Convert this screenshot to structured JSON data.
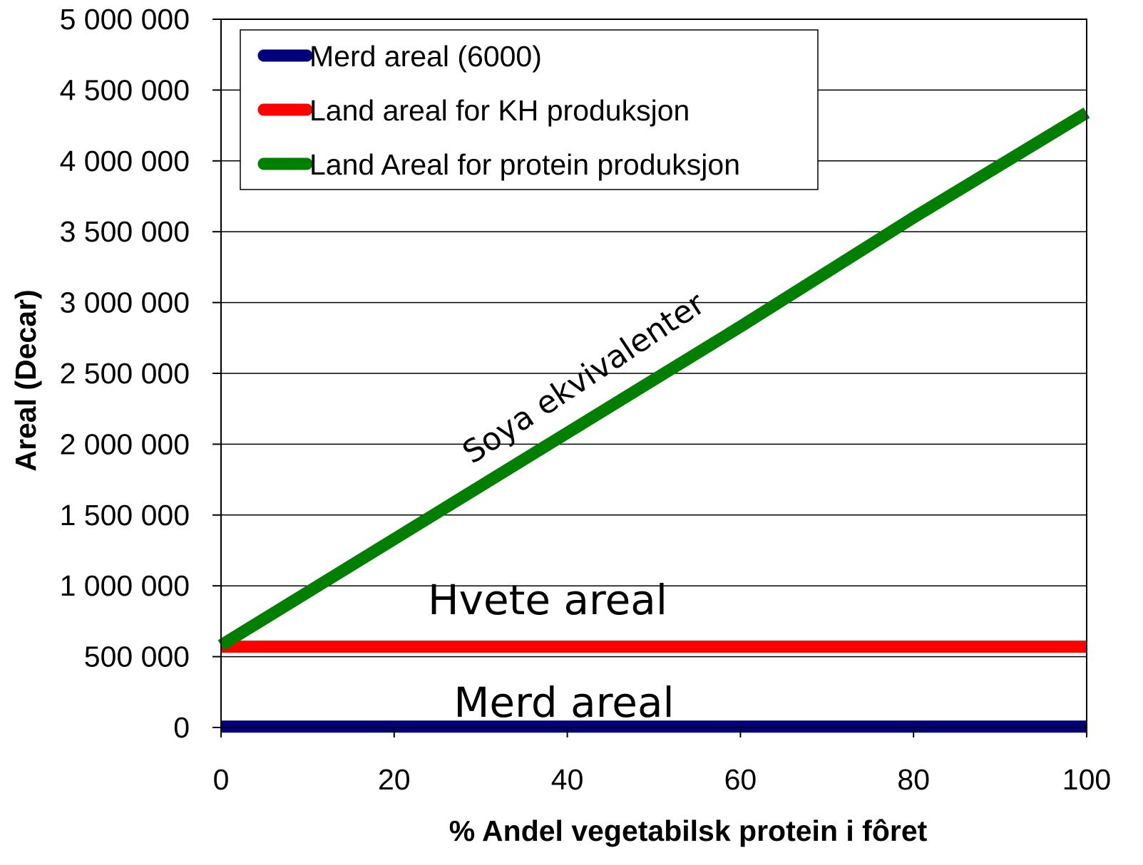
{
  "chart_data": {
    "type": "line",
    "title": "",
    "xlabel": "% Andel vegetabilsk protein i fôret",
    "ylabel": "Areal (Decar)",
    "xlim": [
      0,
      100
    ],
    "ylim": [
      0,
      5000000
    ],
    "x_ticks": [
      0,
      20,
      40,
      60,
      80,
      100
    ],
    "x_tick_labels": [
      "0",
      "20",
      "40",
      "60",
      "80",
      "100"
    ],
    "y_ticks": [
      0,
      500000,
      1000000,
      1500000,
      2000000,
      2500000,
      3000000,
      3500000,
      4000000,
      4500000,
      5000000
    ],
    "y_tick_labels": [
      "0",
      "500 000",
      "1 000 000",
      "1 500 000",
      "2 000 000",
      "2 500 000",
      "3 000 000",
      "3 500 000",
      "4 000 000",
      "4 500 000",
      "5 000 000"
    ],
    "grid": true,
    "legend_position": "top-left",
    "x": [
      0,
      20,
      40,
      60,
      80,
      100
    ],
    "series": [
      {
        "name": "Merd areal (6000)",
        "color": "#00007f",
        "values": [
          6000,
          6000,
          6000,
          6000,
          6000,
          6000
        ]
      },
      {
        "name": "Land areal for KH produksjon",
        "color": "#ff0000",
        "values": [
          570000,
          570000,
          570000,
          570000,
          570000,
          570000
        ]
      },
      {
        "name": "Land Areal for protein produksjon",
        "color": "#007f00",
        "values": [
          580000,
          1330000,
          2080000,
          2830000,
          3600000,
          4340000
        ]
      }
    ],
    "annotations": [
      {
        "text": "Soya ekvivalenter",
        "x": 38,
        "y": 2100000
      },
      {
        "text": "Hvete areal",
        "x": 38,
        "y": 880000
      },
      {
        "text": "Merd areal",
        "x": 40,
        "y": 170000
      }
    ]
  }
}
